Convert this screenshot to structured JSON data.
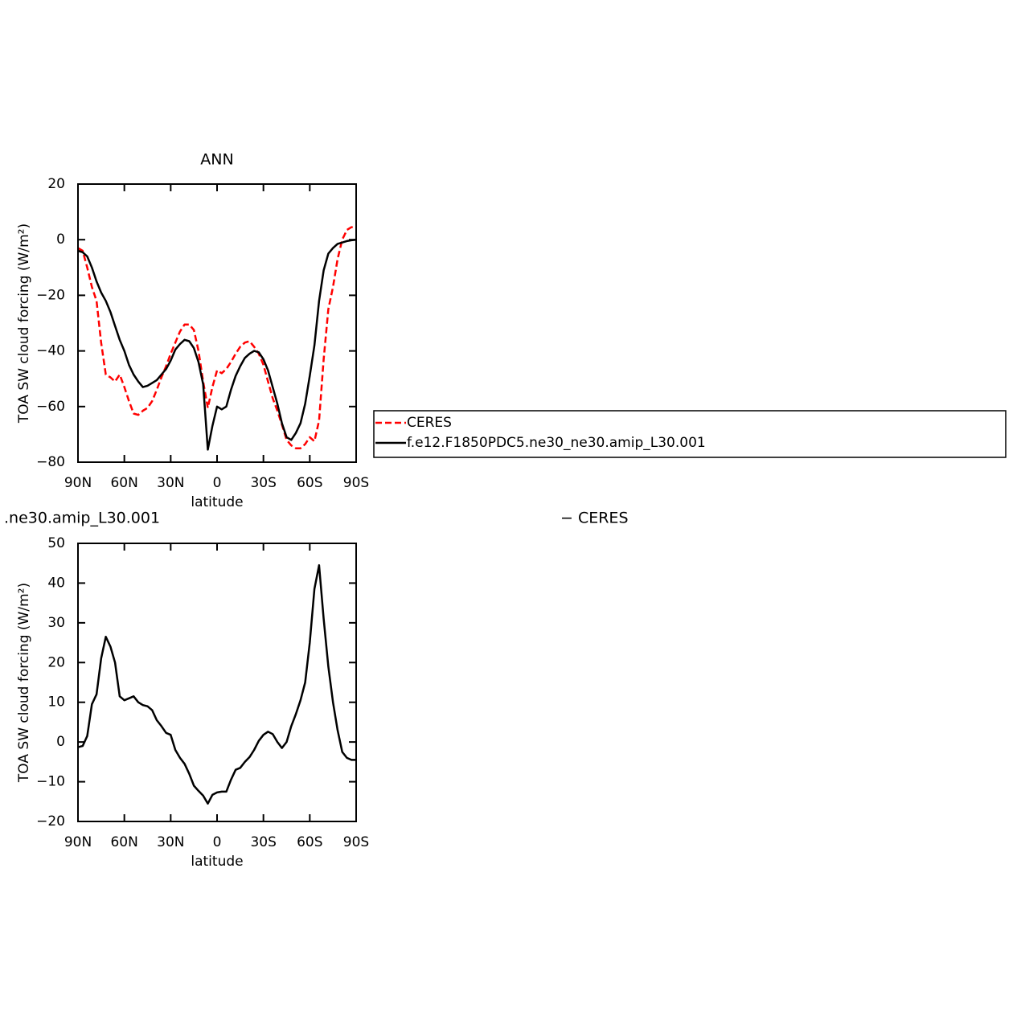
{
  "chart_data": [
    {
      "type": "line",
      "title": "ANN",
      "xlabel": "latitude",
      "ylabel": "TOA SW cloud forcing (W/m²)",
      "x": [
        90,
        87,
        84,
        81,
        78,
        75,
        72,
        69,
        66,
        63,
        60,
        57,
        54,
        51,
        48,
        45,
        42,
        39,
        36,
        33,
        30,
        27,
        24,
        21,
        18,
        15,
        12,
        9,
        6,
        3,
        0,
        -3,
        -6,
        -9,
        -12,
        -15,
        -18,
        -21,
        -24,
        -27,
        -30,
        -33,
        -36,
        -39,
        -42,
        -45,
        -48,
        -51,
        -54,
        -57,
        -60,
        -63,
        -66,
        -69,
        -72,
        -75,
        -78,
        -81,
        -84,
        -87,
        -90
      ],
      "series": [
        {
          "name": "CERES",
          "color": "#ff0000",
          "dashed": true,
          "values": [
            -3,
            -4,
            -10,
            -17,
            -22,
            -37,
            -48.5,
            -49.5,
            -51,
            -48.5,
            -53,
            -58,
            -62.5,
            -63,
            -61.5,
            -60.5,
            -58,
            -54,
            -49.5,
            -45.5,
            -41,
            -37,
            -33,
            -30.5,
            -30.5,
            -32.5,
            -40,
            -51,
            -60.5,
            -53,
            -47,
            -48,
            -46.5,
            -44,
            -41,
            -38.5,
            -37,
            -36.5,
            -38.5,
            -41,
            -45,
            -51,
            -57,
            -61.5,
            -66.5,
            -72,
            -74,
            -75,
            -75,
            -73.5,
            -71,
            -72.5,
            -65,
            -43,
            -25,
            -17,
            -7,
            0,
            3.5,
            4.5,
            4.5
          ]
        },
        {
          "name": "f.e12.F1850PDC5.ne30_ne30.amip_L30.001",
          "color": "#000000",
          "dashed": false,
          "values": [
            -4,
            -4.5,
            -6,
            -10,
            -15,
            -19,
            -22,
            -26,
            -31,
            -36,
            -40,
            -45,
            -48.5,
            -51,
            -53,
            -52.5,
            -51.5,
            -50.5,
            -48.5,
            -46.5,
            -43.5,
            -39.5,
            -37.5,
            -36,
            -36.5,
            -39,
            -44,
            -52,
            -75.5,
            -67,
            -60,
            -61,
            -60,
            -54,
            -49,
            -45.5,
            -42.5,
            -41,
            -40,
            -40.5,
            -43,
            -47,
            -53,
            -59,
            -66,
            -71,
            -72,
            -69.5,
            -66,
            -59,
            -49,
            -38,
            -22,
            -11,
            -5,
            -3,
            -1.5,
            -1,
            -0.5,
            -0.2,
            0
          ]
        }
      ],
      "xlim": [
        90,
        -90
      ],
      "xticks": [
        {
          "value": 90,
          "label": "90N"
        },
        {
          "value": 60,
          "label": "60N"
        },
        {
          "value": 30,
          "label": "30N"
        },
        0,
        {
          "value": -30,
          "label": "30S"
        },
        {
          "value": -60,
          "label": "60S"
        },
        {
          "value": -90,
          "label": "90S"
        }
      ],
      "ylim": [
        -80,
        20
      ],
      "yticks": [
        20,
        0,
        {
          "value": -20,
          "label": "−20"
        },
        {
          "value": -40,
          "label": "−40"
        },
        {
          "value": -60,
          "label": "−60"
        },
        {
          "value": -80,
          "label": "−80"
        }
      ],
      "legend": "right"
    },
    {
      "type": "line",
      "title_parts": [
        ".ne30.amip_L30.001",
        "− CERES"
      ],
      "xlabel": "latitude",
      "ylabel": "TOA SW cloud forcing (W/m²)",
      "x": [
        90,
        87,
        84,
        81,
        78,
        75,
        72,
        69,
        66,
        63,
        60,
        57,
        54,
        51,
        48,
        45,
        42,
        39,
        36,
        33,
        30,
        27,
        24,
        21,
        18,
        15,
        12,
        9,
        6,
        3,
        0,
        -3,
        -6,
        -9,
        -12,
        -15,
        -18,
        -21,
        -24,
        -27,
        -30,
        -33,
        -36,
        -39,
        -42,
        -45,
        -48,
        -51,
        -54,
        -57,
        -60,
        -63,
        -66,
        -69,
        -72,
        -75,
        -78,
        -81,
        -84,
        -87,
        -90
      ],
      "series": [
        {
          "color": "#000000",
          "dashed": false,
          "values": [
            -1.3,
            -1,
            1.5,
            9.5,
            12,
            21,
            26.5,
            24,
            20,
            11.5,
            10.5,
            11,
            11.5,
            10,
            9.3,
            9,
            8,
            5.5,
            4,
            2.3,
            1.8,
            -2,
            -4,
            -5.5,
            -8,
            -11,
            -12.3,
            -13.5,
            -15.5,
            -13.3,
            -12.7,
            -12.5,
            -12.5,
            -9.5,
            -7,
            -6.5,
            -5,
            -3.8,
            -2,
            0.3,
            1.8,
            2.6,
            2,
            0,
            -1.5,
            0,
            4,
            7,
            10.5,
            15,
            25,
            38.5,
            44.5,
            31,
            19,
            10,
            3,
            -2.5,
            -4,
            -4.5,
            -4.5
          ]
        }
      ],
      "xlim": [
        90,
        -90
      ],
      "xticks": [
        {
          "value": 90,
          "label": "90N"
        },
        {
          "value": 60,
          "label": "60N"
        },
        {
          "value": 30,
          "label": "30N"
        },
        0,
        {
          "value": -30,
          "label": "30S"
        },
        {
          "value": -60,
          "label": "60S"
        },
        {
          "value": -90,
          "label": "90S"
        }
      ],
      "ylim": [
        -20,
        50
      ],
      "yticks": [
        50,
        40,
        30,
        20,
        10,
        0,
        {
          "value": -10,
          "label": "−10"
        },
        {
          "value": -20,
          "label": "−20"
        }
      ]
    }
  ]
}
